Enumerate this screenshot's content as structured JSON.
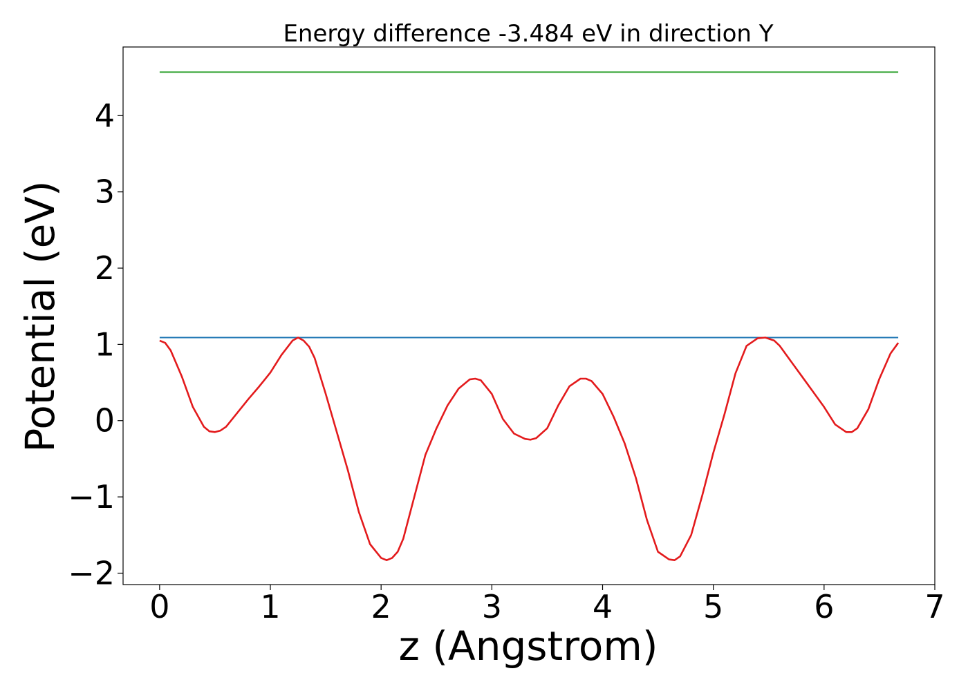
{
  "chart_data": {
    "type": "line",
    "title": "Energy difference -3.484 eV in direction Y",
    "xlabel": "z (Angstrom)",
    "ylabel": "Potential (eV)",
    "xlim": [
      -0.33,
      7.0
    ],
    "ylim": [
      -2.15,
      4.9
    ],
    "xticks": [
      0,
      1,
      2,
      3,
      4,
      5,
      6,
      7
    ],
    "xtick_labels": [
      "0",
      "1",
      "2",
      "3",
      "4",
      "5",
      "6",
      "7"
    ],
    "yticks": [
      -2,
      -1,
      0,
      1,
      2,
      3,
      4
    ],
    "ytick_labels": [
      "−2",
      "−1",
      "0",
      "1",
      "2",
      "3",
      "4"
    ],
    "grid": false,
    "series": [
      {
        "color": "#2ca02c",
        "x": [
          0,
          6.67
        ],
        "y": [
          4.57,
          4.57
        ]
      },
      {
        "color": "#1f77b4",
        "x": [
          0,
          6.67
        ],
        "y": [
          1.09,
          1.09
        ]
      },
      {
        "color": "#e31a1c",
        "x": [
          0,
          0.05,
          0.1,
          0.2,
          0.3,
          0.4,
          0.45,
          0.5,
          0.55,
          0.6,
          0.7,
          0.8,
          0.9,
          1.0,
          1.1,
          1.2,
          1.25,
          1.3,
          1.35,
          1.4,
          1.5,
          1.6,
          1.7,
          1.8,
          1.9,
          2.0,
          2.05,
          2.1,
          2.15,
          2.2,
          2.3,
          2.4,
          2.5,
          2.6,
          2.7,
          2.8,
          2.85,
          2.9,
          3.0,
          3.1,
          3.2,
          3.3,
          3.35,
          3.4,
          3.5,
          3.6,
          3.7,
          3.8,
          3.85,
          3.9,
          4.0,
          4.1,
          4.2,
          4.3,
          4.4,
          4.5,
          4.6,
          4.65,
          4.7,
          4.8,
          4.9,
          5.0,
          5.1,
          5.2,
          5.3,
          5.4,
          5.47,
          5.55,
          5.6,
          5.7,
          5.8,
          5.9,
          6.0,
          6.1,
          6.2,
          6.25,
          6.3,
          6.4,
          6.5,
          6.6,
          6.67
        ],
        "y": [
          1.05,
          1.02,
          0.92,
          0.58,
          0.18,
          -0.08,
          -0.14,
          -0.15,
          -0.13,
          -0.08,
          0.1,
          0.28,
          0.45,
          0.63,
          0.86,
          1.05,
          1.09,
          1.05,
          0.97,
          0.82,
          0.35,
          -0.15,
          -0.65,
          -1.2,
          -1.62,
          -1.8,
          -1.83,
          -1.8,
          -1.72,
          -1.55,
          -1.0,
          -0.45,
          -0.1,
          0.2,
          0.42,
          0.54,
          0.55,
          0.53,
          0.35,
          0.02,
          -0.17,
          -0.24,
          -0.25,
          -0.23,
          -0.1,
          0.2,
          0.45,
          0.55,
          0.55,
          0.52,
          0.35,
          0.05,
          -0.3,
          -0.75,
          -1.3,
          -1.72,
          -1.82,
          -1.83,
          -1.78,
          -1.5,
          -0.98,
          -0.42,
          0.08,
          0.62,
          0.98,
          1.08,
          1.09,
          1.05,
          0.98,
          0.78,
          0.58,
          0.38,
          0.18,
          -0.05,
          -0.15,
          -0.15,
          -0.1,
          0.15,
          0.55,
          0.88,
          1.02
        ]
      }
    ]
  }
}
